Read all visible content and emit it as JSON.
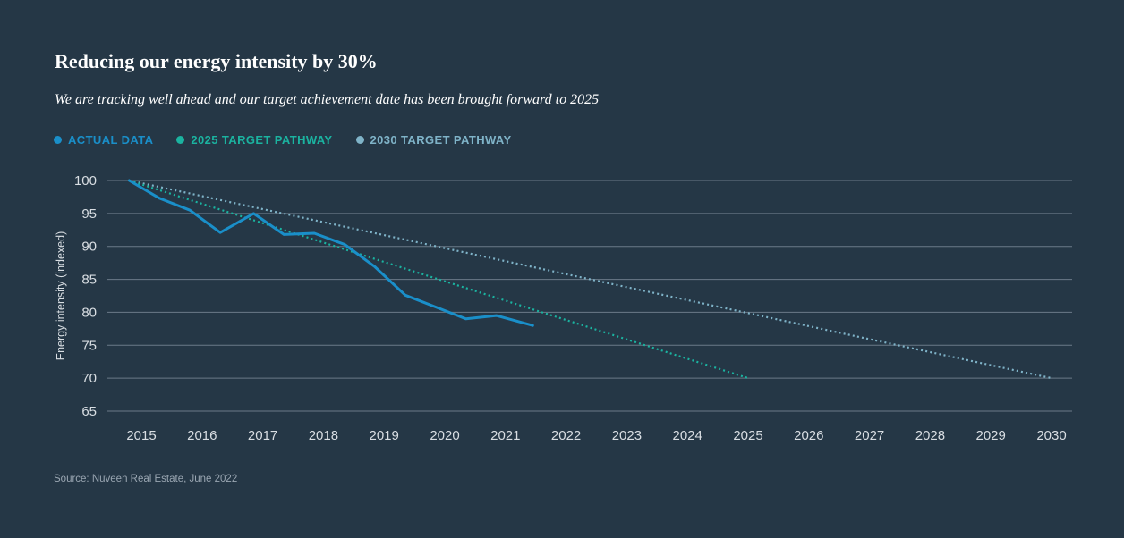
{
  "title": "Reducing our energy intensity by 30%",
  "subtitle": "We are tracking well ahead and our target achievement date has been brought forward to 2025",
  "source": "Source: Nuveen Real Estate, June 2022",
  "colors": {
    "background": "#253746",
    "actual": "#1a8fc9",
    "target_2025": "#1bb3a0",
    "target_2030": "#7fb3c8",
    "grid": "#6b7a88"
  },
  "legend": [
    {
      "label": "ACTUAL DATA",
      "color": "#1a8fc9"
    },
    {
      "label": "2025 TARGET PATHWAY",
      "color": "#1bb3a0"
    },
    {
      "label": "2030 TARGET PATHWAY",
      "color": "#7fb3c8"
    }
  ],
  "chart_data": {
    "type": "line",
    "title": "Reducing our energy intensity by 30%",
    "xlabel": "",
    "ylabel": "Energy intensity (indexed)",
    "xlim": [
      2015,
      2030
    ],
    "ylim": [
      65,
      100
    ],
    "xticks": [
      "2015",
      "2016",
      "2017",
      "2018",
      "2019",
      "2020",
      "2021",
      "2022",
      "2023",
      "2024",
      "2025",
      "2026",
      "2027",
      "2028",
      "2029",
      "2030"
    ],
    "yticks": [
      100,
      95,
      90,
      85,
      80,
      75,
      70,
      65
    ],
    "grid": true,
    "series": [
      {
        "name": "ACTUAL DATA",
        "style": "solid",
        "x": [
          2014.8,
          2015.3,
          2015.8,
          2016.3,
          2016.85,
          2017.35,
          2017.85,
          2018.35,
          2018.85,
          2019.35,
          2019.85,
          2020.35,
          2020.85,
          2021.45
        ],
        "y": [
          100,
          97.3,
          95.5,
          92.1,
          95.0,
          91.8,
          92.0,
          90.3,
          86.9,
          82.6,
          80.8,
          79.0,
          79.5,
          78.0
        ]
      },
      {
        "name": "2025 TARGET PATHWAY",
        "style": "dotted",
        "x": [
          2014.8,
          2025
        ],
        "y": [
          100,
          70
        ]
      },
      {
        "name": "2030 TARGET PATHWAY",
        "style": "dotted",
        "x": [
          2014.8,
          2030
        ],
        "y": [
          100,
          70
        ]
      }
    ]
  }
}
